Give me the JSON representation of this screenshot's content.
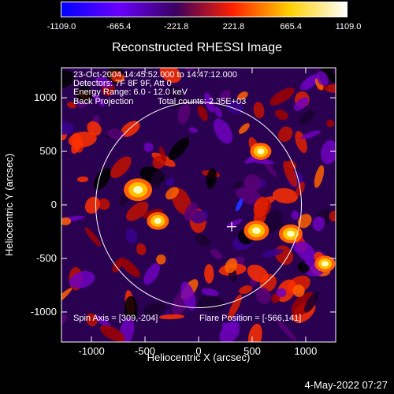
{
  "figure": {
    "title": "Reconstructed RHESSI Image",
    "timestamp": "4-May-2022 07:27"
  },
  "colorbar": {
    "tick_labels": [
      "-1109.0",
      "-665.4",
      "-221.8",
      "221.8",
      "665.4",
      "1109.0"
    ],
    "colors": [
      "#0000ff",
      "#6a00ff",
      "#3a0060",
      "#ff2000",
      "#ffd000",
      "#ffffff"
    ]
  },
  "annotations": {
    "time_range": "23-Oct-2004 14:45:52.000 to 14:47:12.000",
    "detectors": "Detectors: 7F 8F 9F, Att 0",
    "energy_range": "Energy Range: 6.0 - 12.0 keV",
    "method": "Back Projection",
    "total_counts": "Total counts: 2.35E+03",
    "spin_axis": "Spin Axis = [309,-204]",
    "flare_position": "Flare Position = [-566,141]"
  },
  "chart_data": {
    "type": "heatmap",
    "title": "Reconstructed RHESSI Image",
    "xlabel": "Heliocentric X (arcsec)",
    "ylabel": "Heliocentric Y (arcsec)",
    "xlim": [
      -1280,
      1280
    ],
    "ylim": [
      -1280,
      1280
    ],
    "x_ticks": [
      -1000,
      -500,
      0,
      500,
      1000
    ],
    "y_ticks": [
      -1000,
      -500,
      0,
      500,
      1000
    ],
    "value_range": [
      -1109.0,
      1109.0
    ],
    "solar_limb_radius": 960,
    "cross_marker": [
      309,
      -204
    ],
    "bright_sources": [
      {
        "x": -566,
        "y": 141,
        "value": 1109
      },
      {
        "x": 540,
        "y": -240,
        "value": 900
      },
      {
        "x": 860,
        "y": -270,
        "value": 800
      },
      {
        "x": -380,
        "y": -150,
        "value": 700
      },
      {
        "x": 580,
        "y": 500,
        "value": 650
      },
      {
        "x": 1180,
        "y": -550,
        "value": 600
      }
    ]
  }
}
